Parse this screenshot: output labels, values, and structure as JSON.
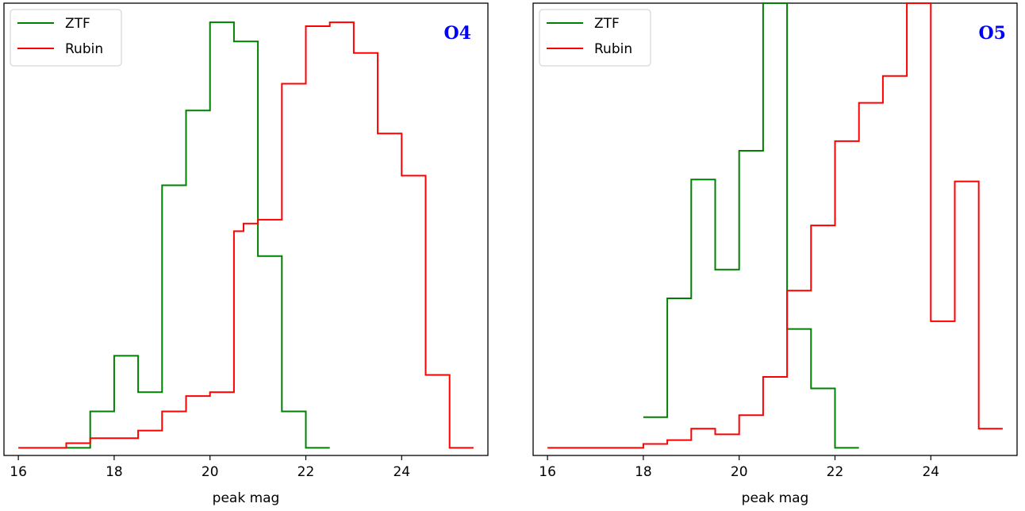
{
  "colors": {
    "ztf": "#008000",
    "rubin": "#ff0000",
    "title": "#0000ff"
  },
  "chart_data": [
    {
      "type": "line",
      "drawstyle": "steps-post",
      "title": "O4",
      "xlabel": "peak mag",
      "ylabel": "",
      "xlim": [
        15.7,
        25.8
      ],
      "ylim": [
        -0.2,
        11.6
      ],
      "xticks": [
        16,
        18,
        20,
        22,
        24
      ],
      "xtick_labels": [
        "16",
        "18",
        "20",
        "22",
        "24"
      ],
      "yticks_shown": false,
      "legend_placement": "top-left",
      "series": [
        {
          "name": "ZTF",
          "color_key": "ztf",
          "x": [
            17.0,
            17.5,
            18.0,
            18.5,
            19.0,
            19.5,
            20.0,
            20.5,
            21.0,
            21.5,
            22.0
          ],
          "y": [
            0.0,
            0.95,
            2.4,
            1.45,
            6.85,
            8.8,
            11.1,
            10.6,
            5.0,
            0.95,
            0.0
          ]
        },
        {
          "name": "Rubin",
          "color_key": "rubin",
          "x": [
            16.0,
            17.0,
            17.5,
            18.5,
            19.0,
            19.5,
            20.0,
            20.5,
            20.7,
            21.0,
            21.5,
            22.0,
            22.5,
            23.0,
            23.5,
            24.0,
            24.5,
            25.0
          ],
          "y": [
            0.0,
            0.12,
            0.25,
            0.45,
            0.95,
            1.35,
            1.45,
            5.65,
            5.85,
            5.95,
            9.5,
            11.0,
            11.1,
            10.3,
            8.2,
            7.1,
            1.9,
            0.0
          ]
        }
      ]
    },
    {
      "type": "line",
      "drawstyle": "steps-post",
      "title": "O5",
      "xlabel": "peak mag",
      "ylabel": "",
      "xlim": [
        15.7,
        25.8
      ],
      "ylim": [
        -0.2,
        11.6
      ],
      "xticks": [
        16,
        18,
        20,
        22,
        24
      ],
      "xtick_labels": [
        "16",
        "18",
        "20",
        "22",
        "24"
      ],
      "yticks_shown": false,
      "legend_placement": "top-left",
      "series": [
        {
          "name": "ZTF",
          "color_key": "ztf",
          "x": [
            18.0,
            18.5,
            19.0,
            19.5,
            20.0,
            20.5,
            21.0,
            21.5,
            22.0
          ],
          "y": [
            0.8,
            3.9,
            7.0,
            4.65,
            7.75,
            11.6,
            3.1,
            1.55,
            0.0
          ]
        },
        {
          "name": "Rubin",
          "color_key": "rubin",
          "x": [
            16.0,
            18.0,
            18.5,
            19.0,
            19.5,
            20.0,
            20.5,
            21.0,
            21.5,
            22.0,
            22.5,
            23.0,
            23.5,
            24.0,
            24.5,
            25.0
          ],
          "y": [
            0.0,
            0.1,
            0.2,
            0.5,
            0.35,
            0.85,
            1.85,
            4.1,
            5.8,
            8.0,
            9.0,
            9.7,
            11.6,
            3.3,
            6.95,
            0.5
          ]
        }
      ]
    }
  ]
}
